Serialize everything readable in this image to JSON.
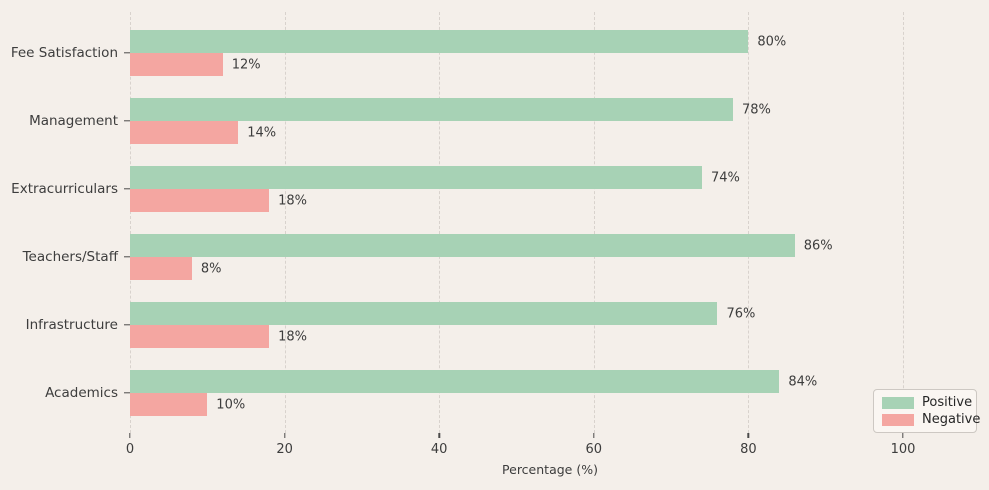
{
  "figure": {
    "background": "#f4efea",
    "grid_color": "#d8d2cd",
    "text_color": "#3d3d3d"
  },
  "chart_data": {
    "type": "bar",
    "orientation": "horizontal",
    "title": "",
    "xlabel": "Percentage (%)",
    "ylabel": "",
    "categories": [
      "Fee Satisfaction",
      "Management",
      "Extracurriculars",
      "Teachers/Staff",
      "Infrastructure",
      "Academics"
    ],
    "series": [
      {
        "name": "Positive",
        "color": "#a7d2b5",
        "values": [
          80,
          78,
          74,
          86,
          76,
          84
        ]
      },
      {
        "name": "Negative",
        "color": "#f4a6a1",
        "values": [
          12,
          14,
          18,
          8,
          18,
          10
        ]
      }
    ],
    "value_label_suffix": "%",
    "xticks": [
      0,
      20,
      40,
      60,
      80,
      100
    ],
    "xtick_labels": [
      "0",
      "20",
      "40",
      "60",
      "80",
      "100"
    ],
    "xlim": [
      0,
      108.7
    ],
    "grid": "vertical-dashed",
    "legend_position": "lower-right"
  }
}
